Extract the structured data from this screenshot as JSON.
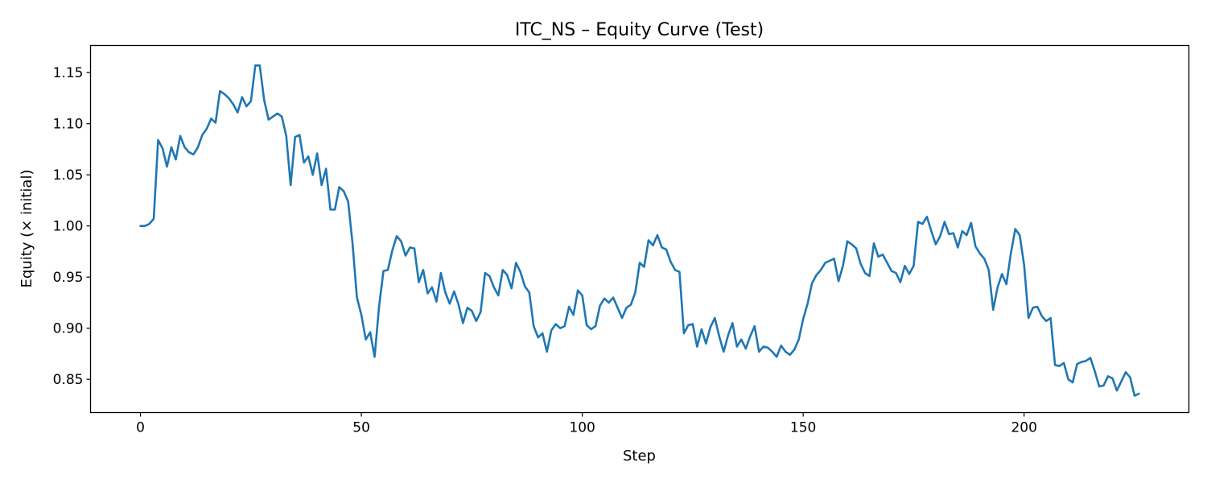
{
  "chart_data": {
    "type": "line",
    "title": "ITC_NS – Equity Curve (Test)",
    "xlabel": "Step",
    "ylabel": "Equity (× initial)",
    "xlim": [
      -11.3,
      237.3
    ],
    "ylim": [
      0.8175,
      1.1765
    ],
    "xticks": [
      0,
      50,
      100,
      150,
      200
    ],
    "yticks": [
      0.85,
      0.9,
      0.95,
      1.0,
      1.05,
      1.1,
      1.15
    ],
    "xtick_labels": [
      "0",
      "50",
      "100",
      "150",
      "200"
    ],
    "ytick_labels": [
      "0.85",
      "0.90",
      "0.95",
      "1.00",
      "1.05",
      "1.10",
      "1.15"
    ],
    "grid": false,
    "legend": "none",
    "line_color": "#1f77b4",
    "series": [
      {
        "x_start": 0,
        "x_step": 1,
        "values": [
          1.0,
          1.0,
          1.002,
          1.007,
          1.084,
          1.076,
          1.058,
          1.077,
          1.065,
          1.088,
          1.077,
          1.072,
          1.07,
          1.077,
          1.089,
          1.095,
          1.105,
          1.101,
          1.132,
          1.129,
          1.125,
          1.119,
          1.111,
          1.126,
          1.117,
          1.122,
          1.157,
          1.157,
          1.123,
          1.104,
          1.107,
          1.11,
          1.107,
          1.088,
          1.04,
          1.087,
          1.089,
          1.062,
          1.068,
          1.05,
          1.071,
          1.04,
          1.056,
          1.016,
          1.016,
          1.038,
          1.034,
          1.024,
          0.983,
          0.93,
          0.913,
          0.889,
          0.896,
          0.872,
          0.921,
          0.956,
          0.957,
          0.976,
          0.99,
          0.985,
          0.971,
          0.979,
          0.978,
          0.945,
          0.957,
          0.934,
          0.94,
          0.926,
          0.954,
          0.935,
          0.924,
          0.936,
          0.923,
          0.905,
          0.92,
          0.917,
          0.907,
          0.916,
          0.954,
          0.951,
          0.94,
          0.932,
          0.957,
          0.952,
          0.939,
          0.964,
          0.955,
          0.941,
          0.935,
          0.902,
          0.891,
          0.895,
          0.877,
          0.898,
          0.904,
          0.9,
          0.902,
          0.921,
          0.913,
          0.937,
          0.932,
          0.903,
          0.899,
          0.902,
          0.922,
          0.929,
          0.925,
          0.93,
          0.92,
          0.91,
          0.92,
          0.923,
          0.935,
          0.964,
          0.96,
          0.986,
          0.981,
          0.991,
          0.979,
          0.977,
          0.965,
          0.957,
          0.955,
          0.895,
          0.903,
          0.904,
          0.882,
          0.899,
          0.885,
          0.901,
          0.91,
          0.892,
          0.877,
          0.893,
          0.905,
          0.882,
          0.889,
          0.88,
          0.892,
          0.902,
          0.877,
          0.882,
          0.881,
          0.877,
          0.872,
          0.883,
          0.877,
          0.874,
          0.879,
          0.889,
          0.909,
          0.924,
          0.944,
          0.952,
          0.957,
          0.964,
          0.966,
          0.968,
          0.946,
          0.961,
          0.985,
          0.982,
          0.978,
          0.963,
          0.954,
          0.951,
          0.983,
          0.97,
          0.972,
          0.964,
          0.956,
          0.954,
          0.945,
          0.961,
          0.953,
          0.961,
          1.004,
          1.002,
          1.009,
          0.995,
          0.982,
          0.99,
          1.004,
          0.992,
          0.993,
          0.979,
          0.995,
          0.991,
          1.003,
          0.98,
          0.973,
          0.968,
          0.957,
          0.918,
          0.94,
          0.953,
          0.943,
          0.973,
          0.997,
          0.991,
          0.962,
          0.91,
          0.92,
          0.921,
          0.912,
          0.907,
          0.91,
          0.864,
          0.863,
          0.866,
          0.85,
          0.847,
          0.865,
          0.867,
          0.868,
          0.871,
          0.858,
          0.843,
          0.844,
          0.853,
          0.851,
          0.839,
          0.848,
          0.857,
          0.852,
          0.834,
          0.836
        ]
      }
    ]
  }
}
